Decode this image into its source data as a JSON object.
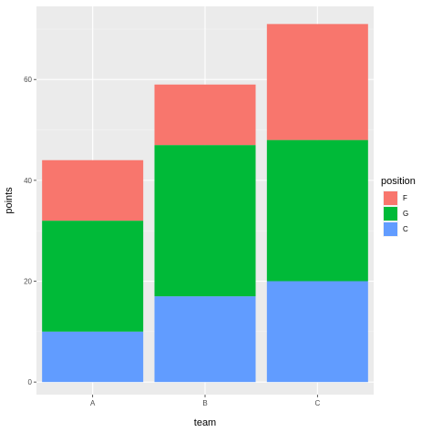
{
  "chart_data": {
    "type": "bar",
    "stacked": true,
    "categories": [
      "A",
      "B",
      "C"
    ],
    "series": [
      {
        "name": "C",
        "values": [
          10,
          17,
          20
        ],
        "color": "#619CFF"
      },
      {
        "name": "G",
        "values": [
          22,
          30,
          28
        ],
        "color": "#00BA38"
      },
      {
        "name": "F",
        "values": [
          12,
          12,
          23
        ],
        "color": "#F8766D"
      }
    ],
    "totals": [
      44,
      59,
      71
    ],
    "xlabel": "team",
    "ylabel": "points",
    "yticks": [
      "0",
      "20",
      "40",
      "60"
    ],
    "ylim": [
      -2.5,
      74.5
    ],
    "grid": true,
    "panel_background": "#EBEBEB",
    "legend": {
      "title": "position",
      "placement": "right",
      "entries": [
        {
          "label": "F",
          "color": "#F8766D"
        },
        {
          "label": "G",
          "color": "#00BA38"
        },
        {
          "label": "C",
          "color": "#619CFF"
        }
      ]
    }
  }
}
